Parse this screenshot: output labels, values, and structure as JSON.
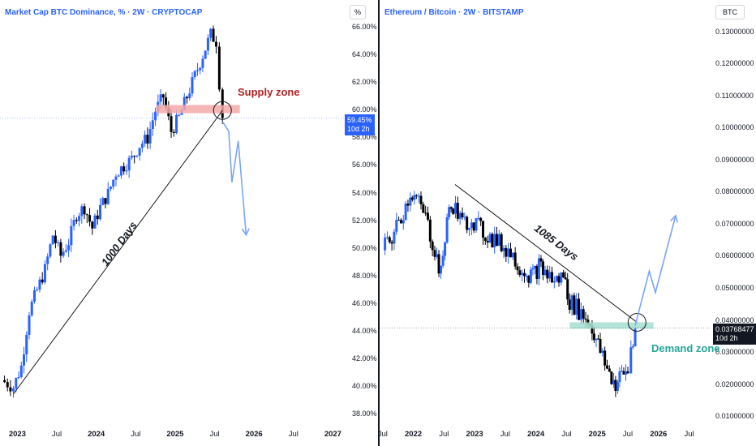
{
  "colors": {
    "accent": "#2962ff",
    "up_candle": "#2962ff",
    "down_candle": "#000000",
    "supply_zone": "#f4a9a8",
    "demand_zone": "#a5e0d0",
    "projection": "#7aa5f5",
    "trendline": "#000000",
    "supply_text": "#b22222",
    "demand_text": "#26a69a"
  },
  "left": {
    "title": "Market Cap BTC Dominance, % · 2W · CRYPTOCAP",
    "unit": "%",
    "price_tag_value": "59.45%",
    "price_tag_time": "10d 2h",
    "supply_zone_label": "Supply zone",
    "trendline_label": "1000 Days"
  },
  "right": {
    "title": "Ethereum / Bitcoin · 2W · BITSTAMP",
    "unit": "BTC",
    "price_tag_value": "0.03768477",
    "price_tag_time": "10d 2h",
    "demand_zone_label": "Demand zone",
    "trendline_label": "1085 Days"
  },
  "chart_data": [
    {
      "type": "candlestick",
      "title": "Market Cap BTC Dominance, % · 2W · CRYPTOCAP",
      "ylabel": "%",
      "ylim": [
        37.5,
        66.7
      ],
      "y_ticks": [
        "38.00%",
        "40.00%",
        "42.00%",
        "44.00%",
        "46.00%",
        "48.00%",
        "50.00%",
        "52.00%",
        "54.00%",
        "56.00%",
        "58.00%",
        "60.00%",
        "62.00%",
        "64.00%",
        "66.00%"
      ],
      "y_tick_values": [
        38,
        40,
        42,
        44,
        46,
        48,
        50,
        52,
        54,
        56,
        58,
        60,
        62,
        64,
        66
      ],
      "x_ticks": [
        "2023",
        "Jul",
        "2024",
        "Jul",
        "2025",
        "Jul",
        "2026",
        "Jul",
        "2027"
      ],
      "x_ticks_bold": [
        "2023",
        "2024",
        "2025",
        "2026",
        "2027"
      ],
      "x_tick_dates": [
        2023.0,
        2023.5,
        2024.0,
        2024.5,
        2025.0,
        2025.5,
        2026.0,
        2026.5,
        2027.0
      ],
      "xlim": [
        2022.78,
        2027.15
      ],
      "last_value": 59.45,
      "close_series": [
        {
          "x": 2022.8,
          "y": 40.5
        },
        {
          "x": 2022.95,
          "y": 40.0
        },
        {
          "x": 2023.05,
          "y": 41.5
        },
        {
          "x": 2023.15,
          "y": 45.5
        },
        {
          "x": 2023.25,
          "y": 47.0
        },
        {
          "x": 2023.35,
          "y": 48.5
        },
        {
          "x": 2023.45,
          "y": 51.0
        },
        {
          "x": 2023.55,
          "y": 49.5
        },
        {
          "x": 2023.65,
          "y": 50.5
        },
        {
          "x": 2023.75,
          "y": 52.5
        },
        {
          "x": 2023.85,
          "y": 53.0
        },
        {
          "x": 2023.95,
          "y": 51.5
        },
        {
          "x": 2024.05,
          "y": 53.0
        },
        {
          "x": 2024.15,
          "y": 54.0
        },
        {
          "x": 2024.25,
          "y": 55.5
        },
        {
          "x": 2024.35,
          "y": 56.0
        },
        {
          "x": 2024.45,
          "y": 56.5
        },
        {
          "x": 2024.55,
          "y": 57.5
        },
        {
          "x": 2024.65,
          "y": 58.0
        },
        {
          "x": 2024.75,
          "y": 60.0
        },
        {
          "x": 2024.85,
          "y": 61.0
        },
        {
          "x": 2024.95,
          "y": 58.5
        },
        {
          "x": 2025.05,
          "y": 59.5
        },
        {
          "x": 2025.15,
          "y": 61.0
        },
        {
          "x": 2025.25,
          "y": 62.5
        },
        {
          "x": 2025.35,
          "y": 64.0
        },
        {
          "x": 2025.45,
          "y": 65.5
        },
        {
          "x": 2025.52,
          "y": 65.0
        },
        {
          "x": 2025.56,
          "y": 62.0
        },
        {
          "x": 2025.6,
          "y": 59.45
        }
      ],
      "annotations": {
        "supply_zone": {
          "y_low": 59.8,
          "y_high": 60.4,
          "label": "Supply zone"
        },
        "trendline": {
          "from": {
            "x": 2022.95,
            "y": 39.5
          },
          "to": {
            "x": 2025.6,
            "y": 60.0
          },
          "label": "1000 Days"
        },
        "projection": [
          {
            "x": 2025.6,
            "y": 59.2
          },
          {
            "x": 2025.68,
            "y": 58.5
          },
          {
            "x": 2025.72,
            "y": 54.8
          },
          {
            "x": 2025.8,
            "y": 57.8
          },
          {
            "x": 2025.9,
            "y": 51.0
          }
        ]
      }
    },
    {
      "type": "candlestick",
      "title": "Ethereum / Bitcoin · 2W · BITSTAMP",
      "ylabel": "BTC",
      "ylim": [
        0.0085,
        0.1345
      ],
      "y_ticks": [
        "0.01000000",
        "0.02000000",
        "0.03000000",
        "0.04000000",
        "0.05000000",
        "0.06000000",
        "0.07000000",
        "0.08000000",
        "0.09000000",
        "0.10000000",
        "0.11000000",
        "0.12000000",
        "0.13000000"
      ],
      "y_tick_values": [
        0.01,
        0.02,
        0.03,
        0.04,
        0.05,
        0.06,
        0.07,
        0.08,
        0.09,
        0.1,
        0.11,
        0.12,
        0.13
      ],
      "x_ticks": [
        "Jul",
        "2022",
        "Jul",
        "2023",
        "Jul",
        "2024",
        "Jul",
        "2025",
        "Jul",
        "2026",
        "Jul"
      ],
      "x_ticks_bold": [
        "2022",
        "2023",
        "2024",
        "2025",
        "2026"
      ],
      "x_tick_dates": [
        2021.5,
        2022.0,
        2022.5,
        2023.0,
        2023.5,
        2024.0,
        2024.5,
        2025.0,
        2025.5,
        2026.0,
        2026.5
      ],
      "xlim": [
        2021.45,
        2026.85
      ],
      "last_value": 0.03768477,
      "close_series": [
        {
          "x": 2021.5,
          "y": 0.062
        },
        {
          "x": 2021.65,
          "y": 0.066
        },
        {
          "x": 2021.8,
          "y": 0.072
        },
        {
          "x": 2021.95,
          "y": 0.08
        },
        {
          "x": 2022.05,
          "y": 0.078
        },
        {
          "x": 2022.2,
          "y": 0.072
        },
        {
          "x": 2022.35,
          "y": 0.062
        },
        {
          "x": 2022.45,
          "y": 0.054
        },
        {
          "x": 2022.55,
          "y": 0.072
        },
        {
          "x": 2022.65,
          "y": 0.076
        },
        {
          "x": 2022.8,
          "y": 0.07
        },
        {
          "x": 2022.95,
          "y": 0.072
        },
        {
          "x": 2023.1,
          "y": 0.068
        },
        {
          "x": 2023.25,
          "y": 0.066
        },
        {
          "x": 2023.4,
          "y": 0.064
        },
        {
          "x": 2023.55,
          "y": 0.062
        },
        {
          "x": 2023.7,
          "y": 0.058
        },
        {
          "x": 2023.85,
          "y": 0.055
        },
        {
          "x": 2023.95,
          "y": 0.054
        },
        {
          "x": 2024.05,
          "y": 0.057
        },
        {
          "x": 2024.15,
          "y": 0.055
        },
        {
          "x": 2024.3,
          "y": 0.052
        },
        {
          "x": 2024.45,
          "y": 0.054
        },
        {
          "x": 2024.55,
          "y": 0.046
        },
        {
          "x": 2024.7,
          "y": 0.043
        },
        {
          "x": 2024.85,
          "y": 0.04
        },
        {
          "x": 2024.95,
          "y": 0.036
        },
        {
          "x": 2025.05,
          "y": 0.03
        },
        {
          "x": 2025.2,
          "y": 0.023
        },
        {
          "x": 2025.3,
          "y": 0.02
        },
        {
          "x": 2025.4,
          "y": 0.023
        },
        {
          "x": 2025.5,
          "y": 0.024
        },
        {
          "x": 2025.55,
          "y": 0.032
        },
        {
          "x": 2025.62,
          "y": 0.03768
        }
      ],
      "annotations": {
        "demand_zone": {
          "y_low": 0.0375,
          "y_high": 0.0395,
          "label": "Demand zone"
        },
        "trendline": {
          "from": {
            "x": 2022.68,
            "y": 0.0825
          },
          "to": {
            "x": 2025.65,
            "y": 0.0395
          },
          "label": "1085 Days"
        },
        "projection": [
          {
            "x": 2025.62,
            "y": 0.0385
          },
          {
            "x": 2025.85,
            "y": 0.0555
          },
          {
            "x": 2025.95,
            "y": 0.0488
          },
          {
            "x": 2026.28,
            "y": 0.0728
          }
        ]
      }
    }
  ]
}
